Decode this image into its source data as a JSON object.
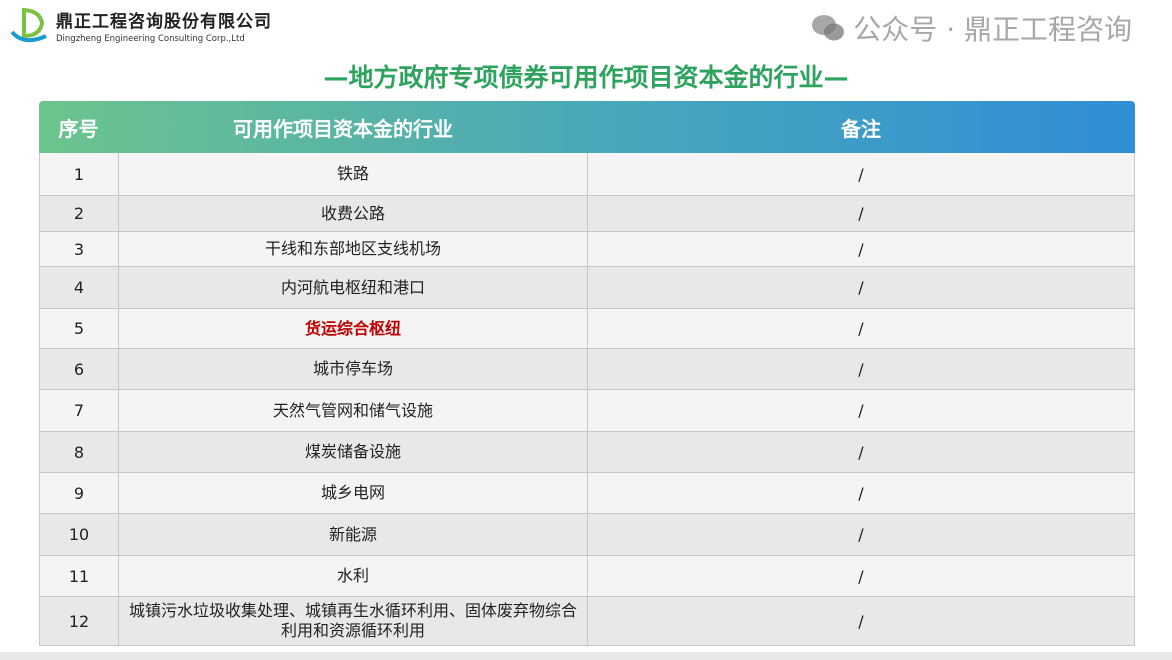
{
  "logo": {
    "cn": "鼎正工程咨询股份有限公司",
    "en": "Dingzheng Engineering Consulting Corp.,Ltd"
  },
  "title": "—地方政府专项债券可用作项目资本金的行业—",
  "table": {
    "headers": [
      "序号",
      "可用作项目资本金的行业",
      "备注"
    ],
    "rows": [
      {
        "no": "1",
        "industry": "铁路",
        "note": "/"
      },
      {
        "no": "2",
        "industry": "收费公路",
        "note": "/"
      },
      {
        "no": "3",
        "industry": "干线和东部地区支线机场",
        "note": "/"
      },
      {
        "no": "4",
        "industry": "内河航电枢纽和港口",
        "note": "/"
      },
      {
        "no": "5",
        "industry": "货运综合枢纽",
        "note": "/",
        "highlight": true
      },
      {
        "no": "6",
        "industry": "城市停车场",
        "note": "/"
      },
      {
        "no": "7",
        "industry": "天然气管网和储气设施",
        "note": "/"
      },
      {
        "no": "8",
        "industry": "煤炭储备设施",
        "note": "/"
      },
      {
        "no": "9",
        "industry": "城乡电网",
        "note": "/"
      },
      {
        "no": "10",
        "industry": "新能源",
        "note": "/"
      },
      {
        "no": "11",
        "industry": "水利",
        "note": "/"
      },
      {
        "no": "12",
        "industry": "城镇污水垃圾收集处理、城镇再生水循环利用、固体废弃物综合利用和资源循环利用",
        "note": "/"
      }
    ]
  },
  "watermark": "公众号 · 鼎正工程咨询",
  "colors": {
    "title": "#2ea35e",
    "highlight": "#c00000",
    "header_start": "#6cc48c",
    "header_end": "#2f8ed6"
  }
}
